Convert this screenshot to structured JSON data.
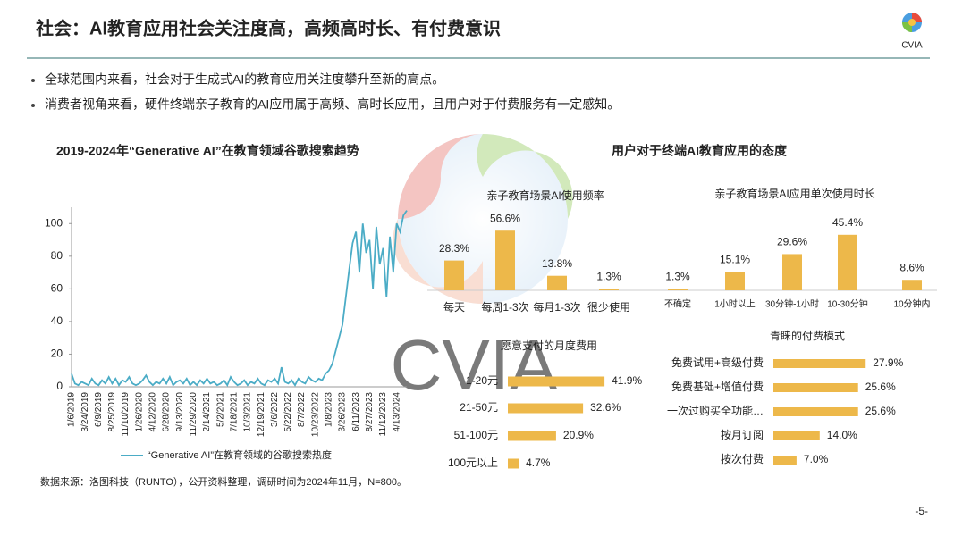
{
  "header": {
    "title": "社会：AI教育应用社会关注度高，高频高时长、有付费意识",
    "logo_text": "CVIA"
  },
  "bullets": [
    "全球范围内来看，社会对于生成式AI的教育应用关注度攀升至新的高点。",
    "消费者视角来看，硬件终端亲子教育的AI应用属于高频、高时长应用，且用户对于付费服务有一定感知。"
  ],
  "right_panel_title": "用户对于终端AI教育应用的态度",
  "watermark": "CVIA",
  "source": "数据来源：洛图科技（RUNTO），公开资料整理，调研时间为2024年11月，N=800。",
  "page_number": "-5-",
  "chart_data": [
    {
      "type": "line",
      "title": "2019-2024年“Generative AI”在教育领域谷歌搜索趋势",
      "categories": [
        "1/6/2019",
        null,
        null,
        null,
        "3/24/2019",
        null,
        null,
        null,
        "6/9/2019",
        null,
        null,
        null,
        "8/25/2019",
        null,
        null,
        null,
        "11/10/2019",
        null,
        null,
        null,
        "1/26/2020",
        null,
        null,
        null,
        "4/12/2020",
        null,
        null,
        null,
        "6/28/2020",
        null,
        null,
        null,
        "9/13/2020",
        null,
        null,
        null,
        "11/29/2020",
        null,
        null,
        null,
        "2/14/2021",
        null,
        null,
        null,
        "5/2/2021",
        null,
        null,
        null,
        "7/18/2021",
        null,
        null,
        null,
        "10/3/2021",
        null,
        null,
        null,
        "12/19/2021",
        null,
        null,
        null,
        "3/6/2022",
        null,
        null,
        null,
        "5/22/2022",
        null,
        null,
        null,
        "8/7/2022",
        null,
        null,
        null,
        "10/23/2022",
        null,
        null,
        null,
        "1/8/2023",
        null,
        null,
        null,
        "3/26/2023",
        null,
        null,
        null,
        "6/11/2023",
        null,
        null,
        null,
        "8/27/2023",
        null,
        null,
        null,
        "11/12/2023",
        null,
        null,
        null,
        "4/13/2024",
        null,
        null,
        null
      ],
      "series": [
        {
          "name": "“Generative AI”在教育领域的谷歌搜索热度",
          "color": "#4BACC6",
          "values": [
            8,
            2,
            1,
            3,
            2,
            1,
            5,
            2,
            1,
            4,
            2,
            6,
            2,
            5,
            1,
            4,
            3,
            6,
            2,
            1,
            2,
            4,
            7,
            3,
            1,
            3,
            2,
            5,
            2,
            6,
            1,
            3,
            4,
            2,
            5,
            1,
            3,
            1,
            4,
            2,
            5,
            2,
            3,
            1,
            2,
            4,
            1,
            6,
            3,
            1,
            2,
            4,
            1,
            3,
            2,
            5,
            2,
            1,
            4,
            3,
            5,
            2,
            12,
            3,
            2,
            4,
            1,
            5,
            3,
            2,
            6,
            4,
            3,
            5,
            4,
            8,
            10,
            14,
            22,
            30,
            38,
            55,
            72,
            88,
            95,
            70,
            100,
            82,
            90,
            60,
            98,
            75,
            85,
            55,
            92,
            70,
            100,
            95,
            105,
            108
          ]
        }
      ],
      "ylim": [
        0,
        110
      ],
      "yticks": [
        0,
        20,
        40,
        60,
        80,
        100
      ]
    },
    {
      "type": "bar",
      "title": "亲子教育场景AI使用频率",
      "color": "#EDB84A",
      "categories": [
        "每天",
        "每周1-3次",
        "每月1-3次",
        "很少使用"
      ],
      "values": [
        28.3,
        56.6,
        13.8,
        1.3
      ],
      "value_labels": [
        "28.3%",
        "56.6%",
        "13.8%",
        "1.3%"
      ]
    },
    {
      "type": "bar",
      "title": "亲子教育场景AI应用单次使用时长",
      "color": "#EDB84A",
      "categories": [
        "不确定",
        "1小时以上",
        "30分钟-1小时",
        "10-30分钟",
        "10分钟内"
      ],
      "values": [
        1.3,
        15.1,
        29.6,
        45.4,
        8.6
      ],
      "value_labels": [
        "1.3%",
        "15.1%",
        "29.6%",
        "45.4%",
        "8.6%"
      ]
    },
    {
      "type": "barh",
      "title": "愿意支付的月度费用",
      "color": "#EDB84A",
      "categories": [
        "1-20元",
        "21-50元",
        "51-100元",
        "100元以上"
      ],
      "values": [
        41.9,
        32.6,
        20.9,
        4.7
      ],
      "value_labels": [
        "41.9%",
        "32.6%",
        "20.9%",
        "4.7%"
      ]
    },
    {
      "type": "barh",
      "title": "青睐的付费模式",
      "color": "#EDB84A",
      "categories": [
        "免费试用+高级付费",
        "免费基础+增值付费",
        "一次过购买全功能…",
        "按月订阅",
        "按次付费"
      ],
      "values": [
        27.9,
        25.6,
        25.6,
        14.0,
        7.0
      ],
      "value_labels": [
        "27.9%",
        "25.6%",
        "25.6%",
        "14.0%",
        "7.0%"
      ]
    }
  ]
}
